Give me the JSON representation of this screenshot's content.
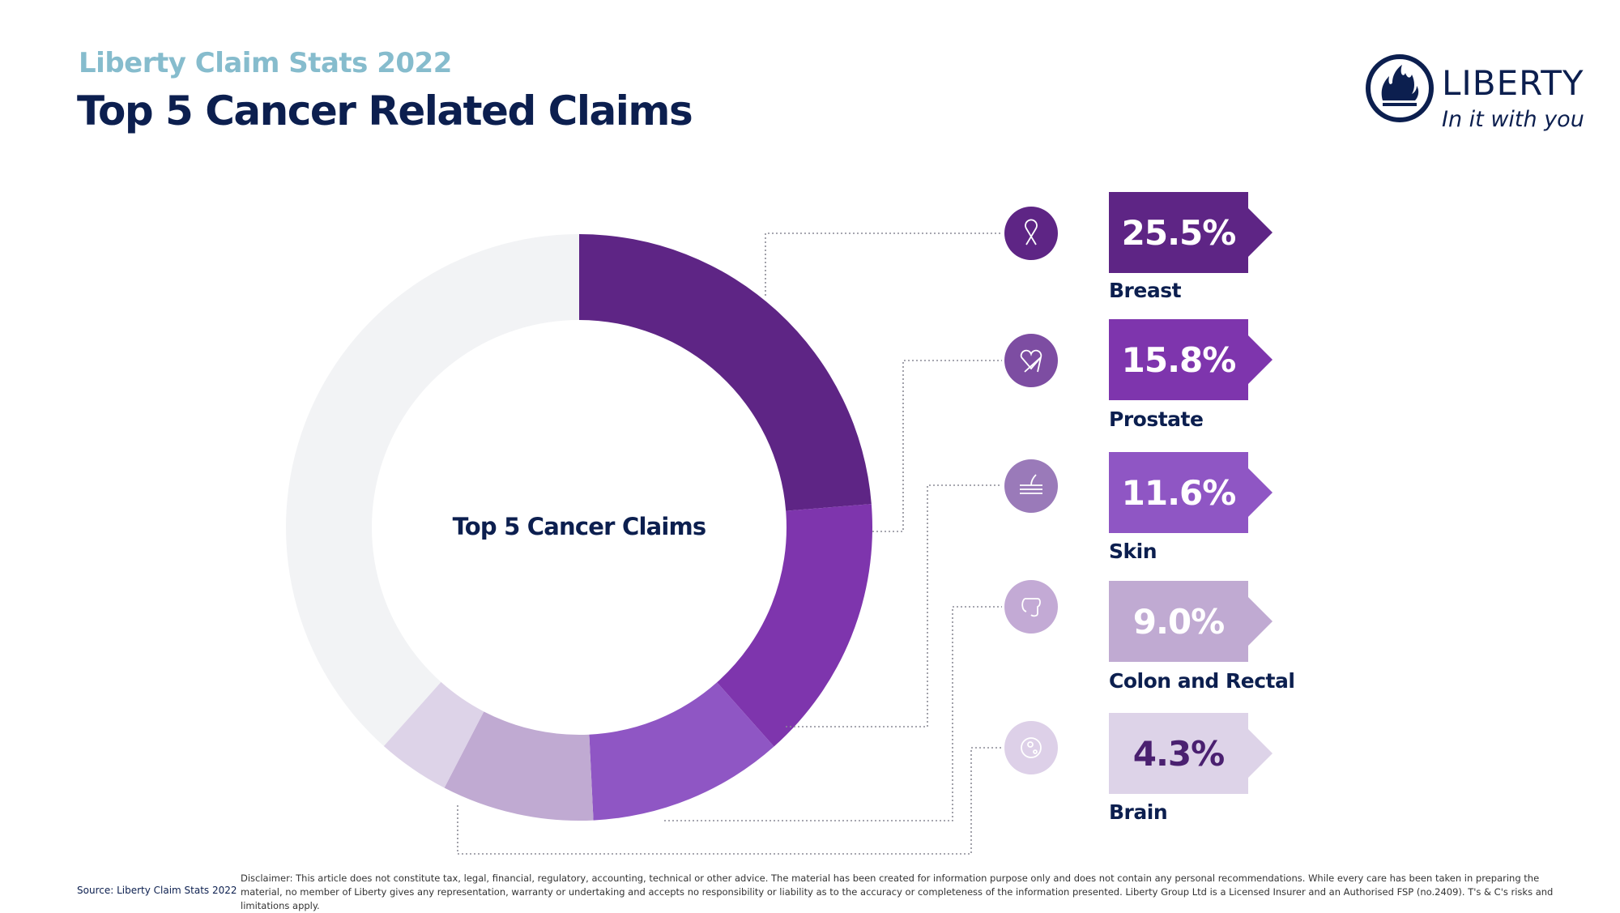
{
  "header": {
    "subtitle": "Liberty Claim Stats 2022",
    "title": "Top 5 Cancer Related Claims"
  },
  "logo": {
    "wordmark": "LIBERTY",
    "tagline": "In it with you",
    "color": "#0c1f4f"
  },
  "chart_data": {
    "type": "pie",
    "variant": "donut",
    "center_label": "Top 5 Cancer Claims",
    "categories": [
      "Breast",
      "Prostate",
      "Skin",
      "Colon and Rectal",
      "Brain"
    ],
    "values": [
      25.5,
      15.8,
      11.6,
      9.0,
      4.3
    ],
    "value_labels": [
      "25.5%",
      "15.8%",
      "11.6%",
      "9.0%",
      "4.3%"
    ],
    "unit": "%",
    "colors": [
      "#5e2585",
      "#7e35ad",
      "#8f56c4",
      "#c0aad2",
      "#ddd3e8"
    ],
    "icon_colors": [
      "#5e2585",
      "#7d4da2",
      "#9a7ab9",
      "#c3aad5",
      "#ddd0e8"
    ],
    "icons": [
      "ribbon-icon",
      "prostate-icon",
      "skin-icon",
      "colon-icon",
      "brain-cell-icon"
    ],
    "remainder_color": "#f2f3f5",
    "legend": "right"
  },
  "footer": {
    "source": "Source: Liberty Claim Stats 2022",
    "disclaimer": "Disclaimer: This article does not constitute tax, legal, financial, regulatory, accounting, technical or other advice. The material has been created for information purpose only and does not contain any personal recommendations. While every care has been taken in preparing the material, no member of Liberty gives any representation, warranty or undertaking and accepts no responsibility or liability as to the accuracy or completeness of the information presented. Liberty Group Ltd is a Licensed Insurer and an Authorised FSP (no.2409). T's & C's risks and limitations apply."
  }
}
